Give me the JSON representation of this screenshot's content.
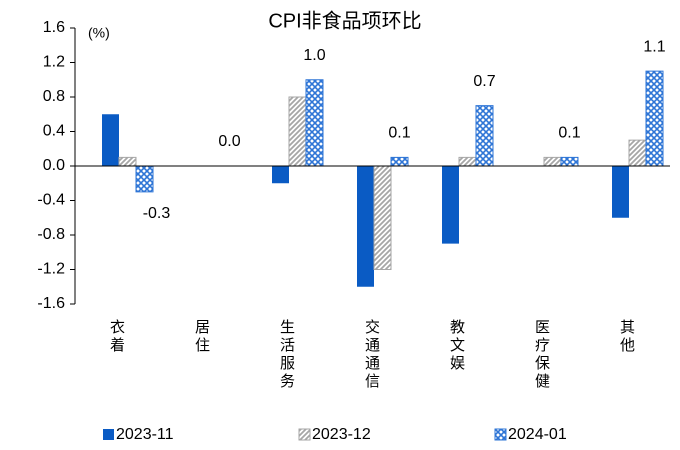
{
  "chart_data": {
    "type": "bar",
    "title": "CPI非食品项环比",
    "y_unit": "(%)",
    "categories": [
      "衣着",
      "居住",
      "生活服务",
      "交通通信",
      "教文娱",
      "医疗保健",
      "其他"
    ],
    "series": [
      {
        "name": "2023-11",
        "color": "#0a5bc4",
        "pattern": "solid",
        "values": [
          0.6,
          0.0,
          -0.2,
          -1.4,
          -0.9,
          0.0,
          -0.6
        ]
      },
      {
        "name": "2023-12",
        "color": "#a6a6a6",
        "pattern": "diagonal",
        "values": [
          0.1,
          0.0,
          0.8,
          -1.2,
          0.1,
          0.1,
          0.3
        ]
      },
      {
        "name": "2024-01",
        "color": "#2e75d6",
        "pattern": "checker",
        "values": [
          -0.3,
          0.0,
          1.0,
          0.1,
          0.7,
          0.1,
          1.1
        ],
        "value_labels": [
          "-0.3",
          "0.0",
          "1.0",
          "0.1",
          "0.7",
          "0.1",
          "1.1"
        ]
      }
    ],
    "ylim": [
      -1.6,
      1.6
    ],
    "yticks": [
      -1.6,
      -1.2,
      -0.8,
      -0.4,
      {
        "value": 0,
        "label": "0.0"
      },
      0.4,
      0.8,
      1.2,
      1.6
    ],
    "grid": false,
    "legend": "bottom"
  }
}
